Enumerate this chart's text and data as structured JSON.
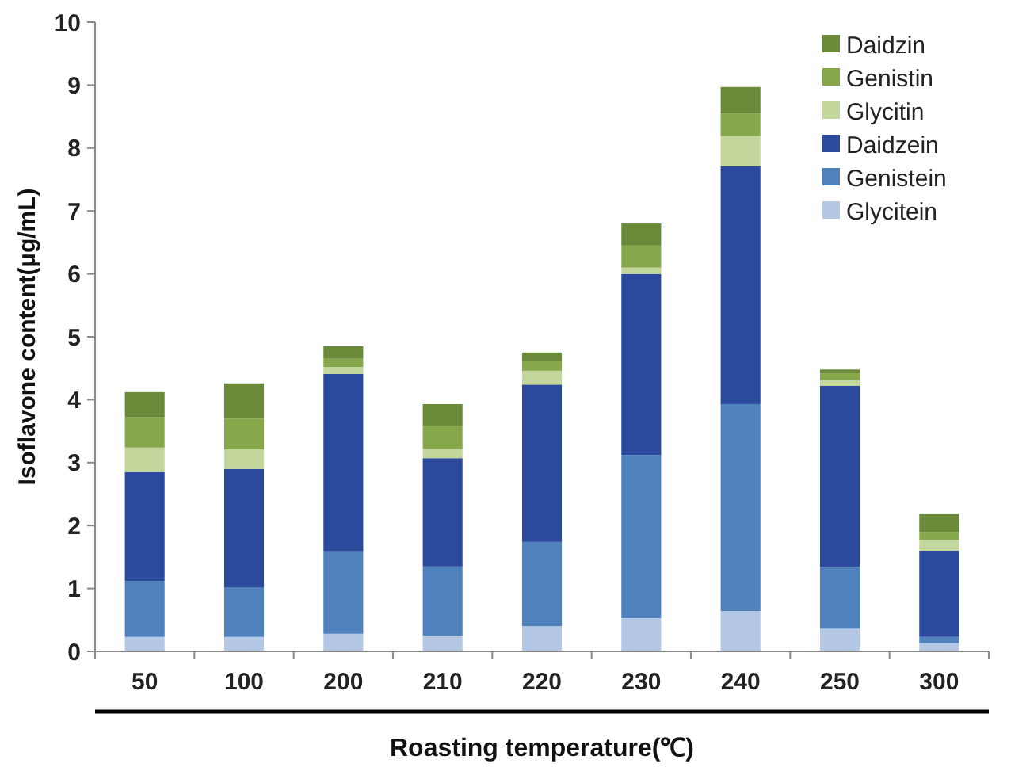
{
  "chart_data": {
    "type": "bar",
    "stacked": true,
    "xlabel": "Roasting temperature(℃)",
    "ylabel": "Isoflavone content(μg/mL)",
    "categories": [
      "50",
      "100",
      "200",
      "210",
      "220",
      "230",
      "240",
      "250",
      "300"
    ],
    "ylim": [
      0,
      10
    ],
    "yticks": [
      0,
      1,
      2,
      3,
      4,
      5,
      6,
      7,
      8,
      9,
      10
    ],
    "grid": false,
    "legend": "top right",
    "series": [
      {
        "name": "Glycitein",
        "color": "#b4c8e6",
        "values": [
          0.23,
          0.23,
          0.28,
          0.25,
          0.4,
          0.53,
          0.64,
          0.36,
          0.13
        ]
      },
      {
        "name": "Genistein",
        "color": "#4f81bd",
        "values": [
          0.89,
          0.79,
          1.31,
          1.1,
          1.34,
          2.59,
          3.29,
          0.98,
          0.1
        ]
      },
      {
        "name": "Daidzein",
        "color": "#2b4a9e",
        "values": [
          1.73,
          1.88,
          2.82,
          1.72,
          2.5,
          2.88,
          3.78,
          2.88,
          1.37
        ]
      },
      {
        "name": "Glycitin",
        "color": "#c3d69b",
        "values": [
          0.39,
          0.31,
          0.11,
          0.15,
          0.22,
          0.1,
          0.48,
          0.09,
          0.17
        ]
      },
      {
        "name": "Genistin",
        "color": "#86a84a",
        "values": [
          0.48,
          0.49,
          0.13,
          0.37,
          0.15,
          0.35,
          0.36,
          0.11,
          0.13
        ]
      },
      {
        "name": "Daidzin",
        "color": "#6a8a3a",
        "values": [
          0.4,
          0.56,
          0.2,
          0.34,
          0.14,
          0.35,
          0.42,
          0.06,
          0.28
        ]
      }
    ]
  }
}
